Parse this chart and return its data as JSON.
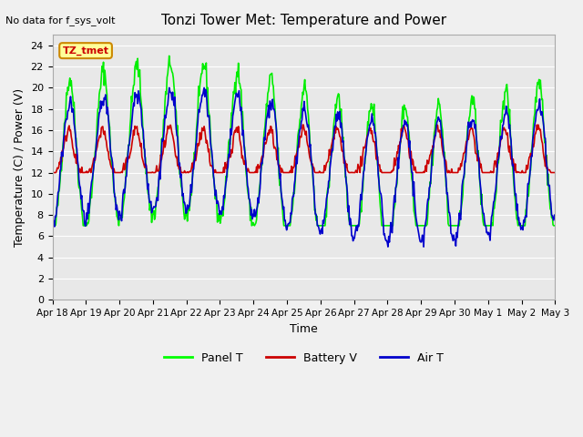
{
  "title": "Tonzi Tower Met: Temperature and Power",
  "xlabel": "Time",
  "ylabel": "Temperature (C) / Power (V)",
  "top_left_text": "No data for f_sys_volt",
  "annotation_box_text": "TZ_tmet",
  "annotation_box_color": "#ffff99",
  "annotation_box_edge": "#cc8800",
  "ylim": [
    0,
    25
  ],
  "yticks": [
    0,
    2,
    4,
    6,
    8,
    10,
    12,
    14,
    16,
    18,
    20,
    22,
    24
  ],
  "xtick_labels": [
    "Apr 18",
    "Apr 19",
    "Apr 20",
    "Apr 21",
    "Apr 22",
    "Apr 23",
    "Apr 24",
    "Apr 25",
    "Apr 26",
    "Apr 27",
    "Apr 28",
    "Apr 29",
    "Apr 30",
    "May 1",
    "May 2",
    "May 3"
  ],
  "background_color": "#e8e8e8",
  "grid_color": "#ffffff",
  "legend_entries": [
    "Panel T",
    "Battery V",
    "Air T"
  ],
  "legend_colors": [
    "#00ff00",
    "#cc0000",
    "#0000cc"
  ],
  "panel_t_color": "#00ee00",
  "battery_v_color": "#cc0000",
  "air_t_color": "#0000cc"
}
